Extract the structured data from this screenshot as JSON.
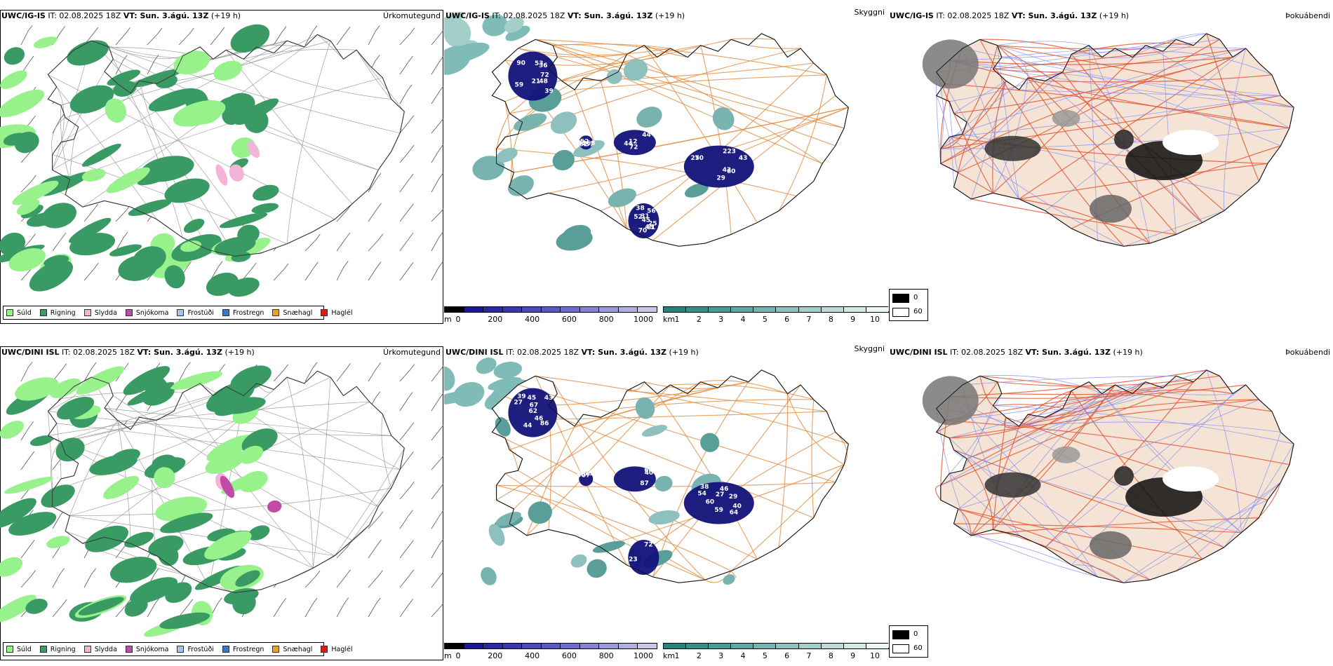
{
  "rows": [
    {
      "model": "UWC/IG-IS",
      "it_label": "IT: 02.08.2025 18Z",
      "vt_label": "VT: Sun. 3.ágú. 13Z",
      "lead": "(+19 h)",
      "panels": {
        "precip_type": "Úrkomutegund",
        "visibility": "Skyggni",
        "fog": "Þokuábendi"
      },
      "cloud_labels": [
        "59",
        "45",
        "43",
        "223",
        "37",
        "52",
        "45",
        "36",
        "70",
        "72",
        "90",
        "60",
        "72",
        "38",
        "53",
        "62",
        "31",
        "61",
        "43",
        "70",
        "62",
        "44",
        "44",
        "93",
        "52",
        "48",
        "21",
        "56",
        "68",
        "39",
        "29",
        "25",
        "12",
        "25"
      ]
    },
    {
      "model": "UWC/DINI ISL",
      "it_label": "IT: 02.08.2025 18Z",
      "vt_label": "VT: Sun. 3.ágú. 13Z",
      "lead": "(+19 h)",
      "panels": {
        "precip_type": "Úrkomutegund",
        "visibility": "Skyggni",
        "fog": "Þokuábendi"
      },
      "cloud_labels": [
        "45",
        "46",
        "46",
        "56",
        "64",
        "87",
        "44",
        "29",
        "43",
        "35",
        "86",
        "64",
        "38",
        "39",
        "40",
        "47",
        "50",
        "54",
        "60",
        "23",
        "59",
        "67",
        "40",
        "27",
        "27",
        "62",
        "72"
      ]
    }
  ],
  "precip_legend": [
    {
      "label": "Súld",
      "color": "#98f28c"
    },
    {
      "label": "Rigning",
      "color": "#3a9a64"
    },
    {
      "label": "Slydda",
      "color": "#f4b3d9"
    },
    {
      "label": "Snjókoma",
      "color": "#c24aa6"
    },
    {
      "label": "Frostúði",
      "color": "#9ec6f2"
    },
    {
      "label": "Frostregn",
      "color": "#3a78c9"
    },
    {
      "label": "Snæhagl",
      "color": "#f0a020"
    },
    {
      "label": "Haglél",
      "color": "#e01818"
    }
  ],
  "height_scale": {
    "unit": "m",
    "ticks": [
      "0",
      "200",
      "400",
      "600",
      "800",
      "1000"
    ],
    "colors": [
      "#000000",
      "#1a1a8a",
      "#2a2a9c",
      "#3838a8",
      "#4a4ab0",
      "#5a5ab8",
      "#6e6ec4",
      "#8484cc",
      "#9a9ad6",
      "#b0b0e0",
      "#c8c8ea"
    ]
  },
  "vis_scale": {
    "unit": "km",
    "ticks": [
      "1",
      "2",
      "3",
      "4",
      "5",
      "6",
      "7",
      "8",
      "9",
      "10"
    ],
    "colors": [
      "#2f7f7b",
      "#3e8b87",
      "#4f9995",
      "#63a6a2",
      "#78b3b0",
      "#8ec1be",
      "#a4ceca",
      "#bcdcd9",
      "#d3e9e6",
      "#ecf6f5"
    ]
  },
  "fog_legend": [
    {
      "value": "0",
      "color": "#000000"
    },
    {
      "value": "60",
      "color": "#ffffff"
    }
  ]
}
